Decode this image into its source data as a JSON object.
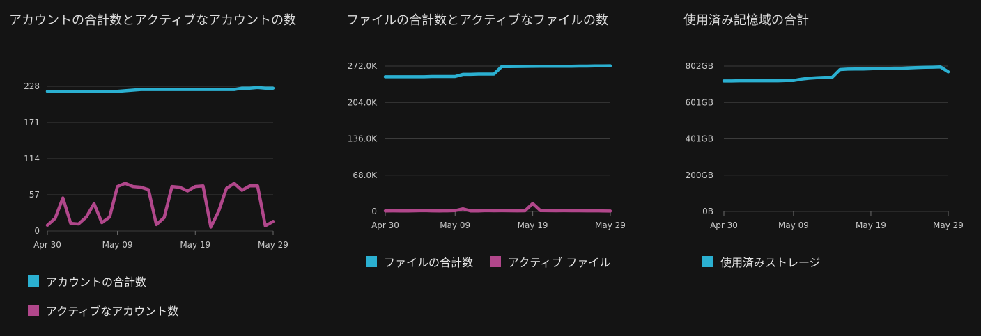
{
  "charts": [
    {
      "title": "アカウントの合計数とアクティブなアカウントの数",
      "legend": [
        "アカウントの合計数",
        "アクティブなアカウント数"
      ]
    },
    {
      "title": "ファイルの合計数とアクティブなファイルの数",
      "legend": [
        "ファイルの合計数",
        "アクティブ ファイル"
      ]
    },
    {
      "title": "使用済み記憶域の合計",
      "legend": [
        "使用済みストレージ"
      ]
    }
  ],
  "chart_data": [
    {
      "type": "line",
      "title": "アカウントの合計数とアクティブなアカウントの数",
      "x": [
        "Apr 30",
        "May 01",
        "May 02",
        "May 03",
        "May 04",
        "May 05",
        "May 06",
        "May 07",
        "May 08",
        "May 09",
        "May 10",
        "May 11",
        "May 12",
        "May 13",
        "May 14",
        "May 15",
        "May 16",
        "May 17",
        "May 18",
        "May 19",
        "May 20",
        "May 21",
        "May 22",
        "May 23",
        "May 24",
        "May 25",
        "May 26",
        "May 27",
        "May 28",
        "May 29"
      ],
      "x_ticks": [
        "Apr 30",
        "May 09",
        "May 19",
        "May 29"
      ],
      "y_ticks": [
        "0",
        "57",
        "114",
        "171",
        "228"
      ],
      "ylim": [
        0,
        228
      ],
      "grid": true,
      "legend_position": "bottom-left",
      "series": [
        {
          "name": "アカウントの合計数",
          "color": "#2bb0d1",
          "values": [
            220,
            220,
            220,
            220,
            220,
            220,
            220,
            220,
            220,
            220,
            221,
            222,
            223,
            223,
            223,
            223,
            223,
            223,
            223,
            223,
            223,
            223,
            223,
            223,
            223,
            225,
            225,
            226,
            225,
            225
          ]
        },
        {
          "name": "アクティブなアカウント数",
          "color": "#b1478b",
          "values": [
            9,
            20,
            52,
            12,
            11,
            22,
            43,
            13,
            22,
            70,
            75,
            70,
            69,
            65,
            10,
            21,
            70,
            69,
            63,
            70,
            71,
            6,
            31,
            67,
            75,
            64,
            71,
            71,
            8,
            15
          ]
        }
      ]
    },
    {
      "type": "line",
      "title": "ファイルの合計数とアクティブなファイルの数",
      "x": [
        "Apr 30",
        "May 01",
        "May 02",
        "May 03",
        "May 04",
        "May 05",
        "May 06",
        "May 07",
        "May 08",
        "May 09",
        "May 10",
        "May 11",
        "May 12",
        "May 13",
        "May 14",
        "May 15",
        "May 16",
        "May 17",
        "May 18",
        "May 19",
        "May 20",
        "May 21",
        "May 22",
        "May 23",
        "May 24",
        "May 25",
        "May 26",
        "May 27",
        "May 28",
        "May 29"
      ],
      "x_ticks": [
        "Apr 30",
        "May 09",
        "May 19",
        "May 29"
      ],
      "y_ticks": [
        "0",
        "68.0K",
        "136.0K",
        "204.0K",
        "272.0K"
      ],
      "ylim": [
        0,
        272000
      ],
      "grid": true,
      "legend_position": "bottom-left",
      "series": [
        {
          "name": "ファイルの合計数",
          "color": "#2bb0d1",
          "values": [
            252000,
            252000,
            252000,
            252000,
            252000,
            252000,
            252500,
            252500,
            252500,
            252500,
            256500,
            256500,
            257000,
            257000,
            257000,
            271000,
            271000,
            271200,
            271400,
            271500,
            271600,
            271600,
            271700,
            271700,
            271800,
            272000,
            272000,
            272200,
            272400,
            272500
          ]
        },
        {
          "name": "アクティブ ファイル",
          "color": "#b1478b",
          "values": [
            1000,
            1200,
            1100,
            1000,
            1300,
            1500,
            1200,
            1000,
            1200,
            1600,
            5000,
            1000,
            1000,
            1500,
            1300,
            1400,
            1300,
            1200,
            1300,
            15000,
            1500,
            1400,
            1300,
            1400,
            1300,
            1300,
            1200,
            1300,
            1100,
            800
          ]
        }
      ]
    },
    {
      "type": "line",
      "title": "使用済み記憶域の合計",
      "x": [
        "Apr 30",
        "May 01",
        "May 02",
        "May 03",
        "May 04",
        "May 05",
        "May 06",
        "May 07",
        "May 08",
        "May 09",
        "May 10",
        "May 11",
        "May 12",
        "May 13",
        "May 14",
        "May 15",
        "May 16",
        "May 17",
        "May 18",
        "May 19",
        "May 20",
        "May 21",
        "May 22",
        "May 23",
        "May 24",
        "May 25",
        "May 26",
        "May 27",
        "May 28",
        "May 29"
      ],
      "x_ticks": [
        "Apr 30",
        "May 09",
        "May 19",
        "May 29"
      ],
      "y_ticks": [
        "0B",
        "200GB",
        "401GB",
        "601GB",
        "802GB"
      ],
      "ylim": [
        0,
        802
      ],
      "y_unit": "GB",
      "grid": true,
      "legend_position": "bottom-left",
      "series": [
        {
          "name": "使用済みストレージ",
          "color": "#2bb0d1",
          "values": [
            720,
            720,
            721,
            721,
            721,
            721,
            721,
            721,
            722,
            722,
            730,
            735,
            738,
            740,
            740,
            783,
            785,
            786,
            786,
            787,
            789,
            789,
            790,
            790,
            792,
            794,
            795,
            796,
            797,
            770
          ]
        }
      ]
    }
  ]
}
